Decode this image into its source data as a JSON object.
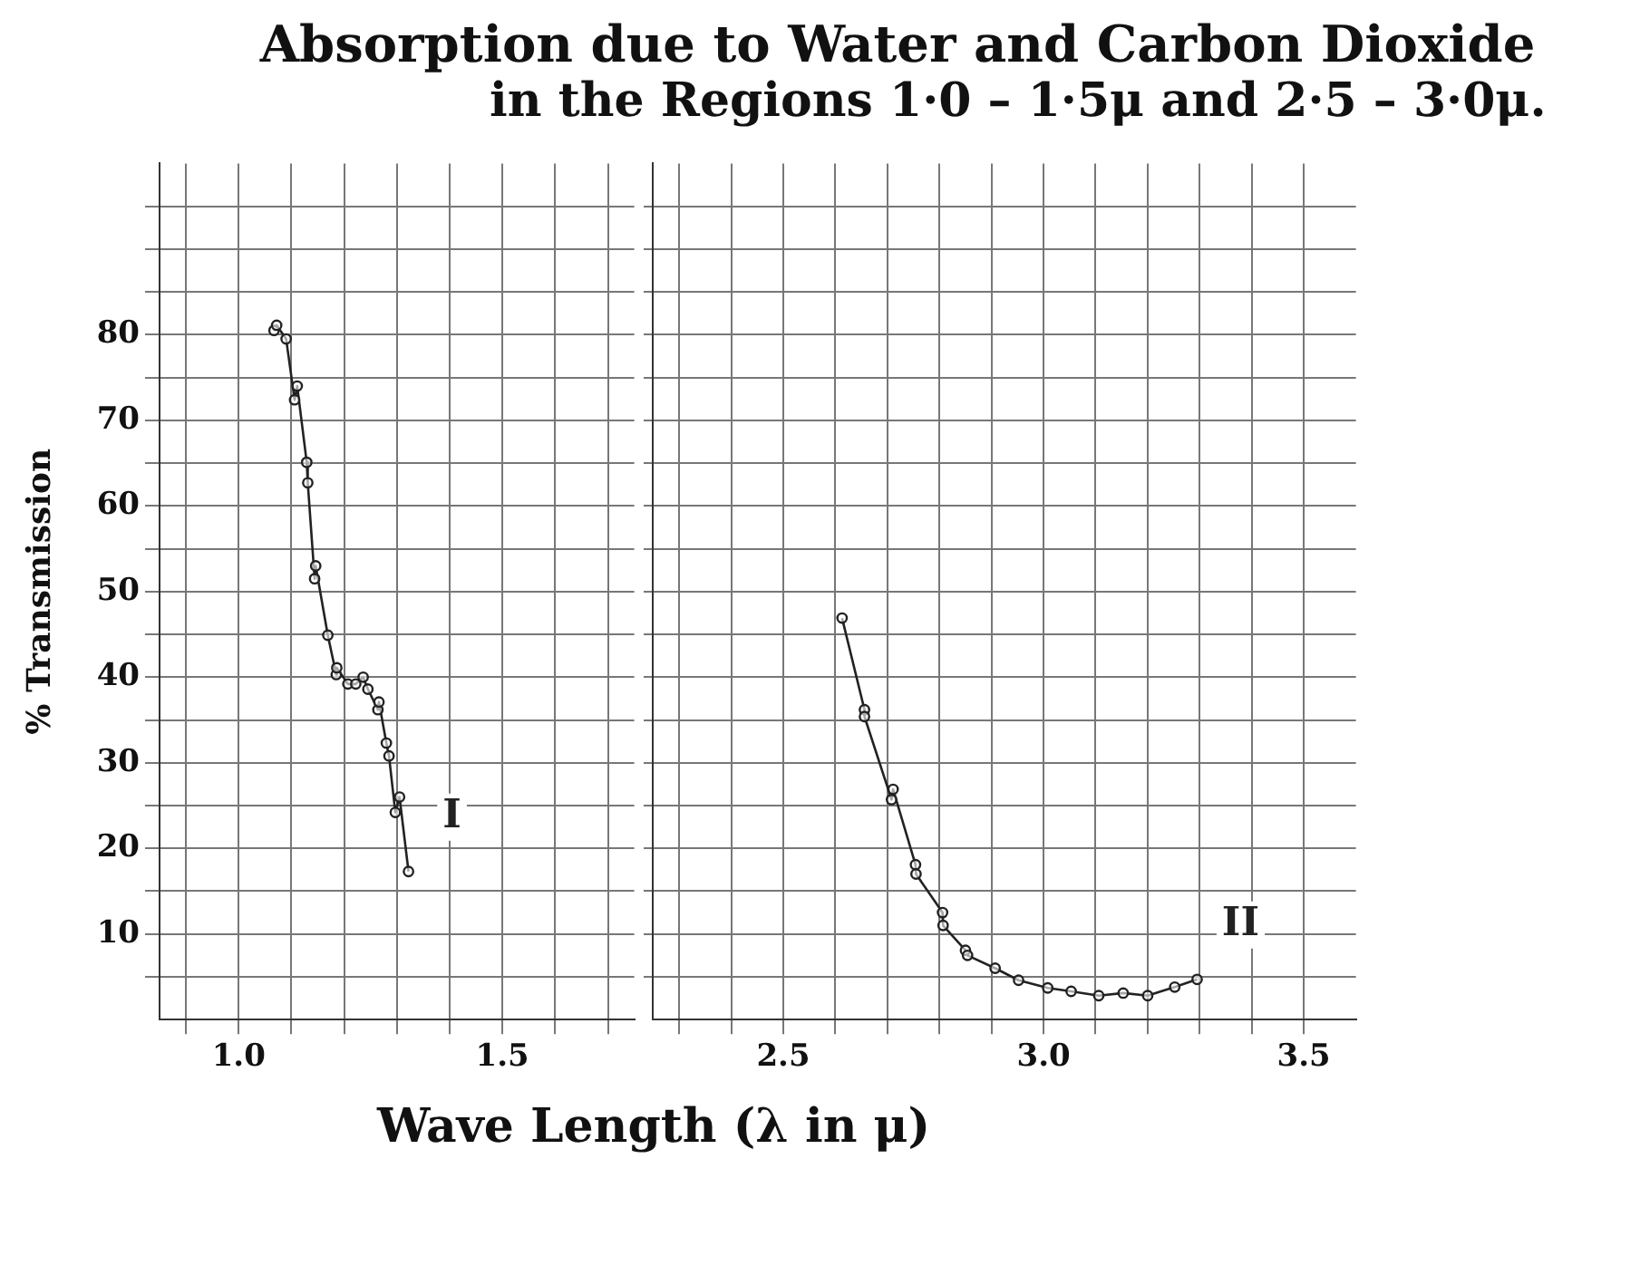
{
  "chart_data": [
    {
      "type": "line",
      "title": "Absorption due to Water and Carbon Dioxide",
      "subtitle": "in the Regions 1·0 – 1·5μ and 2·5 – 3·0μ.",
      "xlabel": "Wave Length (λ in μ)",
      "ylabel": "% Transmission",
      "grid": true,
      "marker": "circle",
      "line_style": "solid",
      "xlim": [
        0.85,
        1.75
      ],
      "xticks": [
        {
          "value": 0.9,
          "label": null
        },
        {
          "value": 1.0,
          "label": "1.0"
        },
        {
          "value": 1.1,
          "label": null
        },
        {
          "value": 1.2,
          "label": null
        },
        {
          "value": 1.3,
          "label": null
        },
        {
          "value": 1.4,
          "label": null
        },
        {
          "value": 1.5,
          "label": "1.5"
        },
        {
          "value": 1.6,
          "label": null
        },
        {
          "value": 1.7,
          "label": null
        }
      ],
      "ylim": [
        0,
        100
      ],
      "yticks": [
        {
          "value": 5,
          "label": null
        },
        10,
        {
          "value": 15,
          "label": null
        },
        20,
        {
          "value": 25,
          "label": null
        },
        30,
        {
          "value": 35,
          "label": null
        },
        40,
        {
          "value": 45,
          "label": null
        },
        50,
        {
          "value": 55,
          "label": null
        },
        60,
        {
          "value": 65,
          "label": null
        },
        70,
        {
          "value": 75,
          "label": null
        },
        80,
        {
          "value": 85,
          "label": null
        },
        {
          "value": 90,
          "label": null
        },
        {
          "value": 95,
          "label": null
        }
      ],
      "series": [
        {
          "name": "I",
          "color": "#222222",
          "x": [
            1.067,
            1.072,
            1.09,
            1.106,
            1.111,
            1.129,
            1.131,
            1.144,
            1.146,
            1.169,
            1.185,
            1.186,
            1.207,
            1.222,
            1.236,
            1.245,
            1.264,
            1.266,
            1.28,
            1.285,
            1.297,
            1.305,
            1.322
          ],
          "values": [
            80.5,
            81.1,
            79.5,
            72.4,
            74.0,
            65.1,
            62.7,
            51.5,
            53.0,
            44.9,
            40.3,
            41.1,
            39.2,
            39.2,
            40.0,
            38.6,
            36.2,
            37.1,
            32.3,
            30.8,
            24.2,
            26.0,
            17.3
          ]
        }
      ]
    },
    {
      "type": "line",
      "grid": true,
      "marker": "circle",
      "line_style": "solid",
      "tick_labels": "x",
      "xlim": [
        2.25,
        3.6
      ],
      "xticks": [
        {
          "value": 2.3,
          "label": null
        },
        {
          "value": 2.4,
          "label": null
        },
        {
          "value": 2.5,
          "label": "2.5"
        },
        {
          "value": 2.6,
          "label": null
        },
        {
          "value": 2.7,
          "label": null
        },
        {
          "value": 2.8,
          "label": null
        },
        {
          "value": 2.9,
          "label": null
        },
        {
          "value": 3.0,
          "label": "3.0"
        },
        {
          "value": 3.1,
          "label": null
        },
        {
          "value": 3.2,
          "label": null
        },
        {
          "value": 3.3,
          "label": null
        },
        {
          "value": 3.4,
          "label": null
        },
        {
          "value": 3.5,
          "label": "3.5"
        }
      ],
      "ylim": [
        0,
        100
      ],
      "yticks": [
        {
          "value": 5,
          "label": null
        },
        10,
        {
          "value": 15,
          "label": null
        },
        20,
        {
          "value": 25,
          "label": null
        },
        30,
        {
          "value": 35,
          "label": null
        },
        40,
        {
          "value": 45,
          "label": null
        },
        50,
        {
          "value": 55,
          "label": null
        },
        60,
        {
          "value": 65,
          "label": null
        },
        70,
        {
          "value": 75,
          "label": null
        },
        80,
        {
          "value": 85,
          "label": null
        },
        {
          "value": 90,
          "label": null
        },
        {
          "value": 95,
          "label": null
        }
      ],
      "series": [
        {
          "name": "II",
          "color": "#222222",
          "x": [
            2.613,
            2.656,
            2.656,
            2.708,
            2.711,
            2.754,
            2.755,
            2.806,
            2.807,
            2.85,
            2.854,
            2.907,
            2.952,
            3.008,
            3.053,
            3.106,
            3.153,
            3.2,
            3.252,
            3.295
          ],
          "values": [
            46.9,
            36.2,
            35.4,
            25.7,
            26.9,
            18.1,
            17.0,
            12.5,
            11.0,
            8.1,
            7.5,
            6.0,
            4.6,
            3.7,
            3.3,
            2.8,
            3.1,
            2.8,
            3.8,
            4.7
          ]
        }
      ]
    }
  ]
}
